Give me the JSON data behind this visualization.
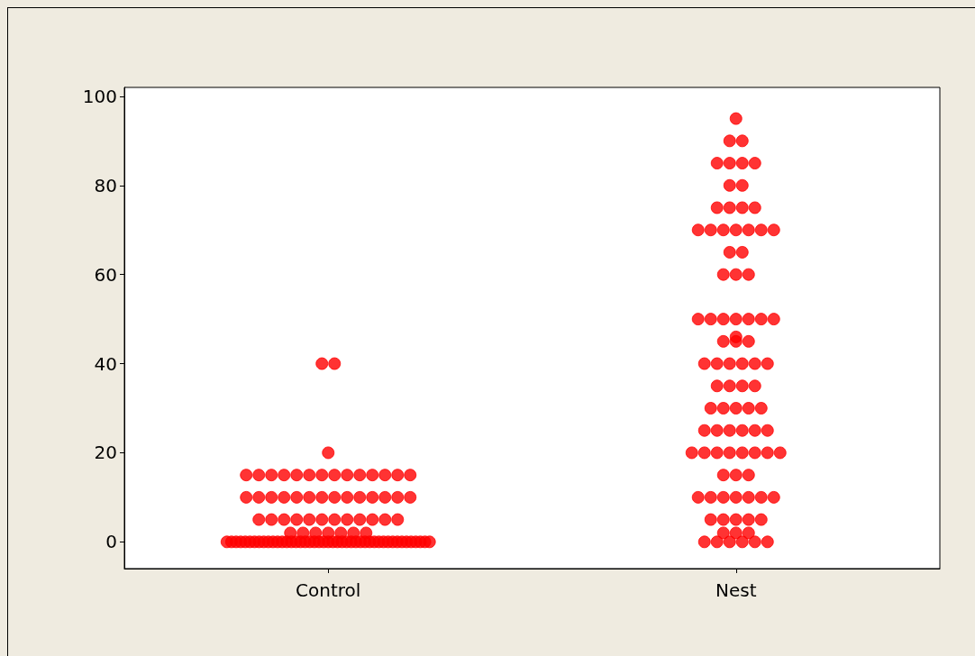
{
  "chart_data": {
    "type": "scatter",
    "categories": [
      "Control",
      "Nest"
    ],
    "series": [
      {
        "color": "#ff0000",
        "x": [
          "Control",
          "Control",
          "Control",
          "Control",
          "Control",
          "Control",
          "Control",
          "Control",
          "Control",
          "Control",
          "Control",
          "Control",
          "Control",
          "Control",
          "Control",
          "Control",
          "Control",
          "Control",
          "Control",
          "Control",
          "Control",
          "Control",
          "Control",
          "Control",
          "Control",
          "Control",
          "Control",
          "Control",
          "Control",
          "Control",
          "Control",
          "Control",
          "Control",
          "Control",
          "Control",
          "Control",
          "Control",
          "Control",
          "Control",
          "Control",
          "Control",
          "Control",
          "Control",
          "Control",
          "Control",
          "Control",
          "Control",
          "Control",
          "Control",
          "Control",
          "Control",
          "Control",
          "Control",
          "Control",
          "Control",
          "Control",
          "Control",
          "Control",
          "Control",
          "Control",
          "Control",
          "Control",
          "Control",
          "Control",
          "Control",
          "Control",
          "Control",
          "Control",
          "Control",
          "Control",
          "Control",
          "Control",
          "Control",
          "Control",
          "Control",
          "Control",
          "Control",
          "Control",
          "Control",
          "Control",
          "Control",
          "Control",
          "Control",
          "Control",
          "Control",
          "Control",
          "Control",
          "Control",
          "Control",
          "Control",
          "Control",
          "Control",
          "Control",
          "Control",
          "Control"
        ],
        "values": [
          40,
          40,
          20,
          15,
          15,
          15,
          15,
          15,
          15,
          15,
          15,
          15,
          15,
          15,
          15,
          15,
          15,
          10,
          10,
          10,
          10,
          10,
          10,
          10,
          10,
          10,
          10,
          10,
          10,
          10,
          10,
          5,
          5,
          5,
          5,
          5,
          5,
          5,
          5,
          5,
          5,
          5,
          5,
          2,
          2,
          2,
          2,
          2,
          2,
          2,
          0,
          0,
          0,
          0,
          0,
          0,
          0,
          0,
          0,
          0,
          0,
          0,
          0,
          0,
          0,
          0,
          0,
          0,
          0,
          0,
          0,
          0,
          0,
          0,
          0,
          0,
          0,
          0,
          0,
          0,
          0,
          0,
          0,
          0,
          0,
          0,
          0,
          0,
          0,
          0,
          0,
          0,
          0,
          0,
          0
        ]
      },
      {
        "color": "#ff0000",
        "x": [
          "Nest",
          "Nest",
          "Nest",
          "Nest",
          "Nest",
          "Nest",
          "Nest",
          "Nest",
          "Nest",
          "Nest",
          "Nest",
          "Nest",
          "Nest",
          "Nest",
          "Nest",
          "Nest",
          "Nest",
          "Nest",
          "Nest",
          "Nest",
          "Nest",
          "Nest",
          "Nest",
          "Nest",
          "Nest",
          "Nest",
          "Nest",
          "Nest",
          "Nest",
          "Nest",
          "Nest",
          "Nest",
          "Nest",
          "Nest",
          "Nest",
          "Nest",
          "Nest",
          "Nest",
          "Nest",
          "Nest",
          "Nest",
          "Nest",
          "Nest",
          "Nest",
          "Nest",
          "Nest",
          "Nest",
          "Nest",
          "Nest",
          "Nest",
          "Nest",
          "Nest",
          "Nest",
          "Nest",
          "Nest",
          "Nest",
          "Nest",
          "Nest",
          "Nest",
          "Nest",
          "Nest",
          "Nest",
          "Nest",
          "Nest",
          "Nest",
          "Nest",
          "Nest",
          "Nest",
          "Nest",
          "Nest",
          "Nest",
          "Nest",
          "Nest",
          "Nest",
          "Nest",
          "Nest",
          "Nest",
          "Nest",
          "Nest",
          "Nest",
          "Nest",
          "Nest",
          "Nest",
          "Nest",
          "Nest",
          "Nest",
          "Nest",
          "Nest",
          "Nest"
        ],
        "values": [
          95,
          90,
          90,
          85,
          85,
          85,
          85,
          80,
          80,
          75,
          75,
          75,
          75,
          70,
          70,
          70,
          70,
          70,
          70,
          70,
          65,
          65,
          60,
          60,
          60,
          50,
          50,
          50,
          50,
          50,
          50,
          50,
          46,
          45,
          45,
          45,
          40,
          40,
          40,
          40,
          40,
          40,
          35,
          35,
          35,
          35,
          30,
          30,
          30,
          30,
          30,
          25,
          25,
          25,
          25,
          25,
          25,
          20,
          20,
          20,
          20,
          20,
          20,
          20,
          20,
          15,
          15,
          15,
          10,
          10,
          10,
          10,
          10,
          10,
          10,
          5,
          5,
          5,
          5,
          5,
          2,
          2,
          2,
          0,
          0,
          0,
          0,
          0,
          0
        ]
      }
    ],
    "ylim": [
      -6,
      102
    ],
    "yticks": [
      0,
      20,
      40,
      60,
      80,
      100
    ],
    "marker": "circle",
    "grid": false
  }
}
